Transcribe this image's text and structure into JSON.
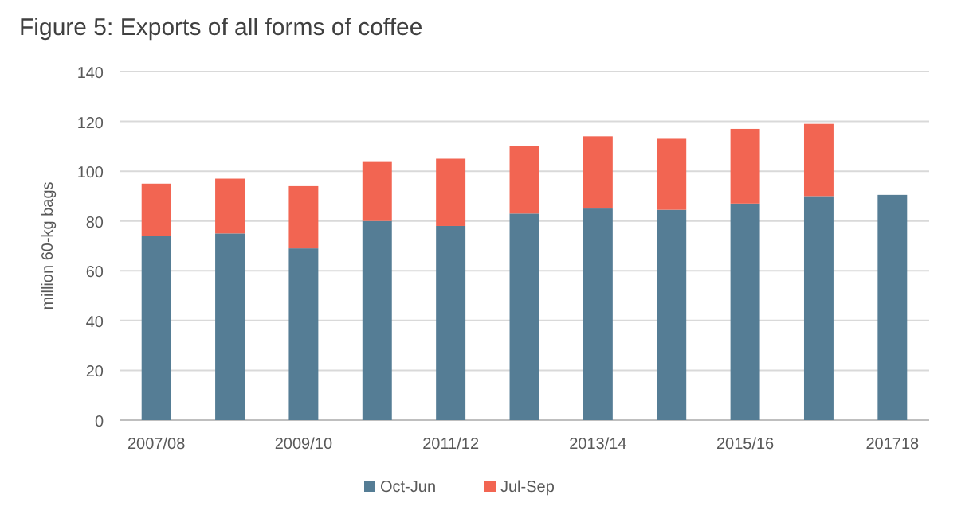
{
  "chart_data": {
    "type": "bar",
    "title": "Figure 5: Exports of all forms of coffee",
    "ylabel": "million 60-kg bags",
    "categories": [
      "2007/08",
      null,
      "2009/10",
      null,
      "2011/12",
      null,
      "2013/14",
      null,
      "2015/16",
      null,
      "201718"
    ],
    "stacked": true,
    "series": [
      {
        "name": "Oct-Jun",
        "color": "#557d95",
        "values": [
          74,
          75,
          69,
          80,
          78,
          83,
          85,
          84.5,
          87,
          90,
          90.5
        ]
      },
      {
        "name": "Jul-Sep",
        "color": "#f26552",
        "values": [
          21,
          22,
          25,
          24,
          27,
          27,
          29,
          28.5,
          30,
          29,
          null
        ]
      }
    ],
    "ylim": [
      0,
      140
    ],
    "yticks": [
      0,
      20,
      40,
      60,
      80,
      100,
      120,
      140
    ],
    "grid": "y",
    "legend": "bottom"
  }
}
